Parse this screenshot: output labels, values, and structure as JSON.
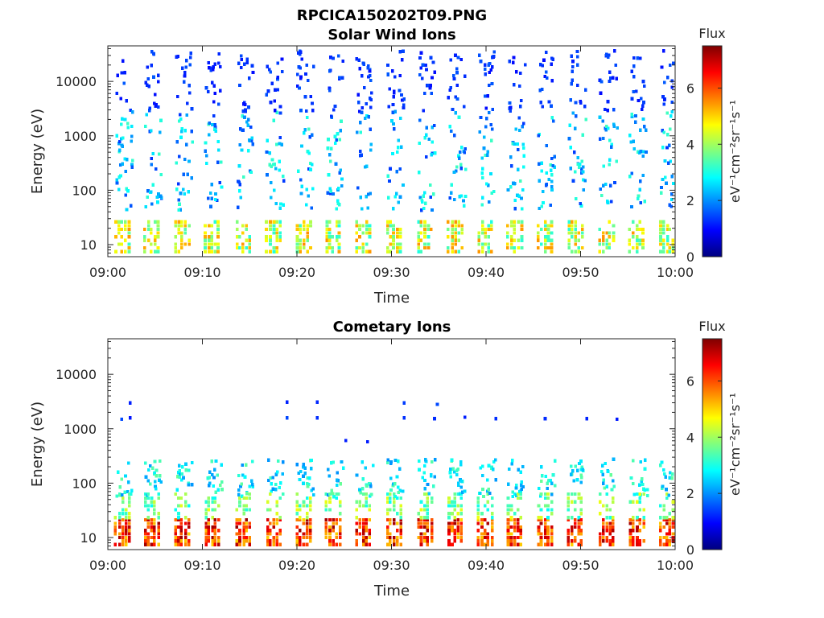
{
  "figure": {
    "title": "RPCICA150202T09.PNG"
  },
  "colormap": [
    "#00007f",
    "#0000ff",
    "#007fff",
    "#00ffff",
    "#7fff7f",
    "#ffff00",
    "#ff7f00",
    "#ff0000",
    "#7f0000"
  ],
  "chart_data": [
    {
      "type": "heatmap",
      "title": "Solar Wind Ions",
      "xlabel": "Time",
      "ylabel": "Energy (eV)",
      "x_ticks": [
        "09:00",
        "09:10",
        "09:20",
        "09:30",
        "09:40",
        "09:50",
        "10:00"
      ],
      "y_scale": "log",
      "y_ticks": [
        {
          "value": 10,
          "label": "10"
        },
        {
          "value": 100,
          "label": "100"
        },
        {
          "value": 1000,
          "label": "1000"
        },
        {
          "value": 10000,
          "label": "10000"
        }
      ],
      "ylim": [
        6,
        45000
      ],
      "colorbar": {
        "label": "Flux",
        "units": "eV⁻¹cm⁻²sr⁻¹s⁻¹",
        "ticks": [
          "0",
          "2",
          "4",
          "6"
        ],
        "range": [
          0,
          7.5
        ]
      },
      "sweep_starts_min": [
        0.6,
        3.7,
        6.9,
        10.1,
        13.4,
        16.6,
        19.8,
        22.9,
        26.1,
        29.3,
        32.6,
        35.8,
        39.0,
        42.1,
        45.3,
        48.5,
        51.8,
        55.0,
        58.2
      ],
      "features": {
        "background": "sparse high-energy counts (flux 1-3) from 50 to 40000 eV",
        "core": "10-30 eV, flux 3-5.5"
      }
    },
    {
      "type": "heatmap",
      "title": "Cometary Ions",
      "xlabel": "Time",
      "ylabel": "Energy (eV)",
      "x_ticks": [
        "09:00",
        "09:10",
        "09:20",
        "09:30",
        "09:40",
        "09:50",
        "10:00"
      ],
      "y_scale": "log",
      "y_ticks": [
        {
          "value": 10,
          "label": "10"
        },
        {
          "value": 100,
          "label": "100"
        },
        {
          "value": 1000,
          "label": "1000"
        },
        {
          "value": 10000,
          "label": "10000"
        }
      ],
      "ylim": [
        6,
        45000
      ],
      "colorbar": {
        "label": "Flux",
        "units": "eV⁻¹cm⁻²sr⁻¹s⁻¹",
        "ticks": [
          "0",
          "2",
          "4",
          "6"
        ],
        "range": [
          0,
          7.5
        ]
      },
      "sweep_starts_min": [
        0.6,
        3.7,
        6.9,
        10.1,
        13.4,
        16.6,
        19.8,
        22.9,
        26.1,
        29.3,
        32.6,
        35.8,
        39.0,
        42.1,
        45.3,
        48.5,
        51.8,
        55.0,
        58.2
      ],
      "features": {
        "core": "8-25 eV, flux 5-7",
        "mid": "30-300 eV, flux 2-4",
        "isolated": "1500-3500 eV, flux 1-1.5"
      }
    }
  ]
}
